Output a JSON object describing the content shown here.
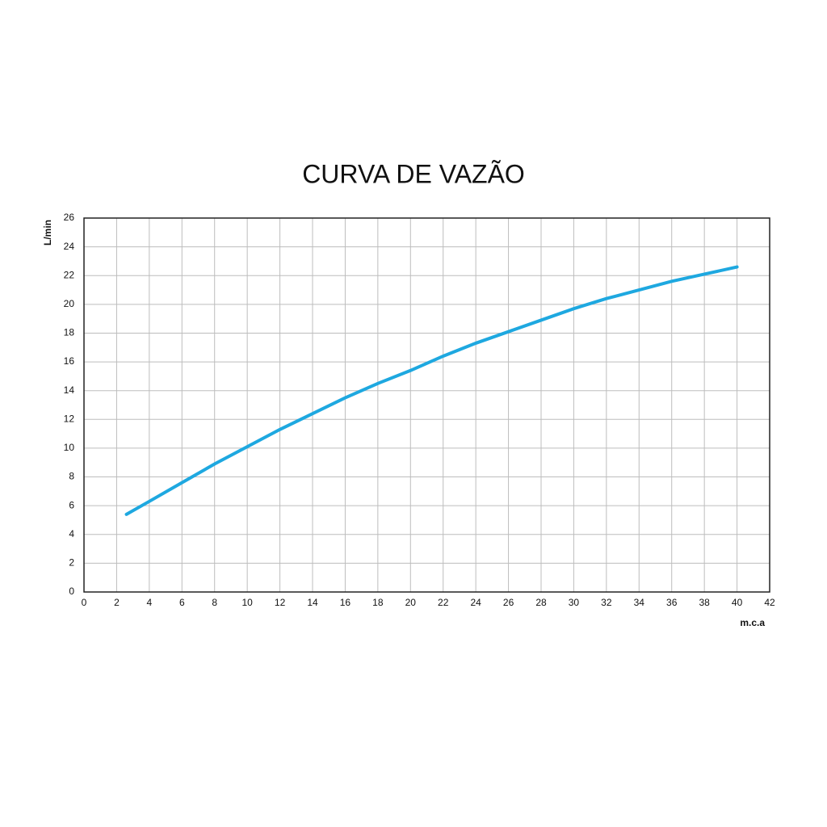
{
  "chart_data": {
    "type": "line",
    "title": "CURVA DE VAZÃO",
    "y_label": "L/min",
    "x_label": "m.c.a",
    "x": [
      2.6,
      4,
      6,
      8,
      10,
      12,
      14,
      16,
      18,
      20,
      22,
      24,
      26,
      28,
      30,
      32,
      34,
      36,
      38,
      40
    ],
    "series": [
      {
        "color": "#1ea8e0",
        "values": [
          5.4,
          6.3,
          7.6,
          8.9,
          10.1,
          11.3,
          12.4,
          13.5,
          14.5,
          15.4,
          16.4,
          17.3,
          18.1,
          18.9,
          19.7,
          20.4,
          21.0,
          21.6,
          22.1,
          22.6
        ]
      }
    ],
    "xlim": [
      0,
      42
    ],
    "xticks": [
      0,
      2,
      4,
      6,
      8,
      10,
      12,
      14,
      16,
      18,
      20,
      22,
      24,
      26,
      28,
      30,
      32,
      34,
      36,
      38,
      40,
      42
    ],
    "ylim": [
      0,
      26
    ],
    "yticks": [
      0,
      2,
      4,
      6,
      8,
      10,
      12,
      14,
      16,
      18,
      20,
      22,
      24,
      26
    ],
    "grid": true
  }
}
